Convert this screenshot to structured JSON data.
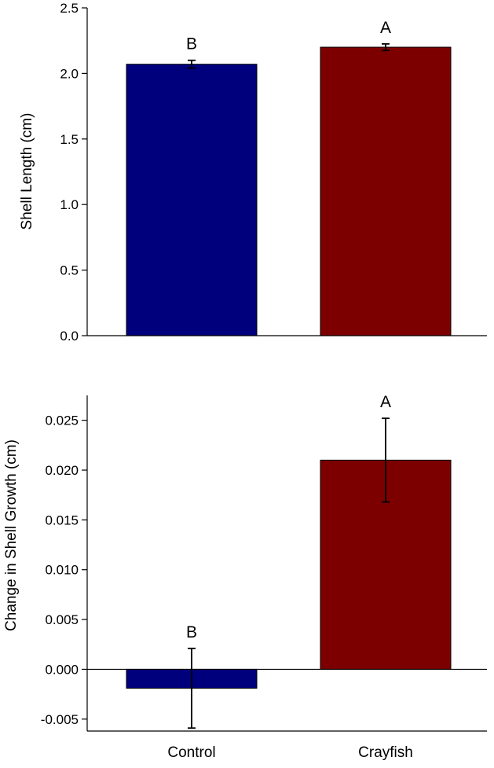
{
  "chart_data": [
    {
      "type": "bar",
      "categories": [
        "Control",
        "Crayfish"
      ],
      "values": [
        2.07,
        2.2
      ],
      "errors": [
        0.03,
        0.025
      ],
      "letters": [
        "B",
        "A"
      ],
      "colors": [
        "#00007d",
        "#7d0000"
      ],
      "ylabel": "Shell Length (cm)",
      "ylim": [
        0,
        2.5
      ],
      "yticks": [
        {
          "value": 0.0,
          "label": "0.0"
        },
        {
          "value": 0.5,
          "label": "0.5"
        },
        {
          "value": 1.0,
          "label": "1.0"
        },
        {
          "value": 1.5,
          "label": "1.5"
        },
        {
          "value": 2.0,
          "label": "2.0"
        },
        {
          "value": 2.5,
          "label": "2.5"
        }
      ],
      "show_category_labels": false,
      "grid": false
    },
    {
      "type": "bar",
      "categories": [
        "Control",
        "Crayfish"
      ],
      "values": [
        -0.0019,
        0.021
      ],
      "errors": [
        0.004,
        0.0042
      ],
      "letters": [
        "B",
        "A"
      ],
      "colors": [
        "#00007d",
        "#7d0000"
      ],
      "ylabel": "Change in Shell Growth (cm)",
      "ylim": [
        -0.0062,
        0.0275
      ],
      "yticks": [
        {
          "value": -0.005,
          "label": "-0.005"
        },
        {
          "value": 0.0,
          "label": "0.000"
        },
        {
          "value": 0.005,
          "label": "0.005"
        },
        {
          "value": 0.01,
          "label": "0.010"
        },
        {
          "value": 0.015,
          "label": "0.015"
        },
        {
          "value": 0.02,
          "label": "0.020"
        },
        {
          "value": 0.025,
          "label": "0.025"
        }
      ],
      "show_category_labels": true,
      "grid": false
    }
  ]
}
